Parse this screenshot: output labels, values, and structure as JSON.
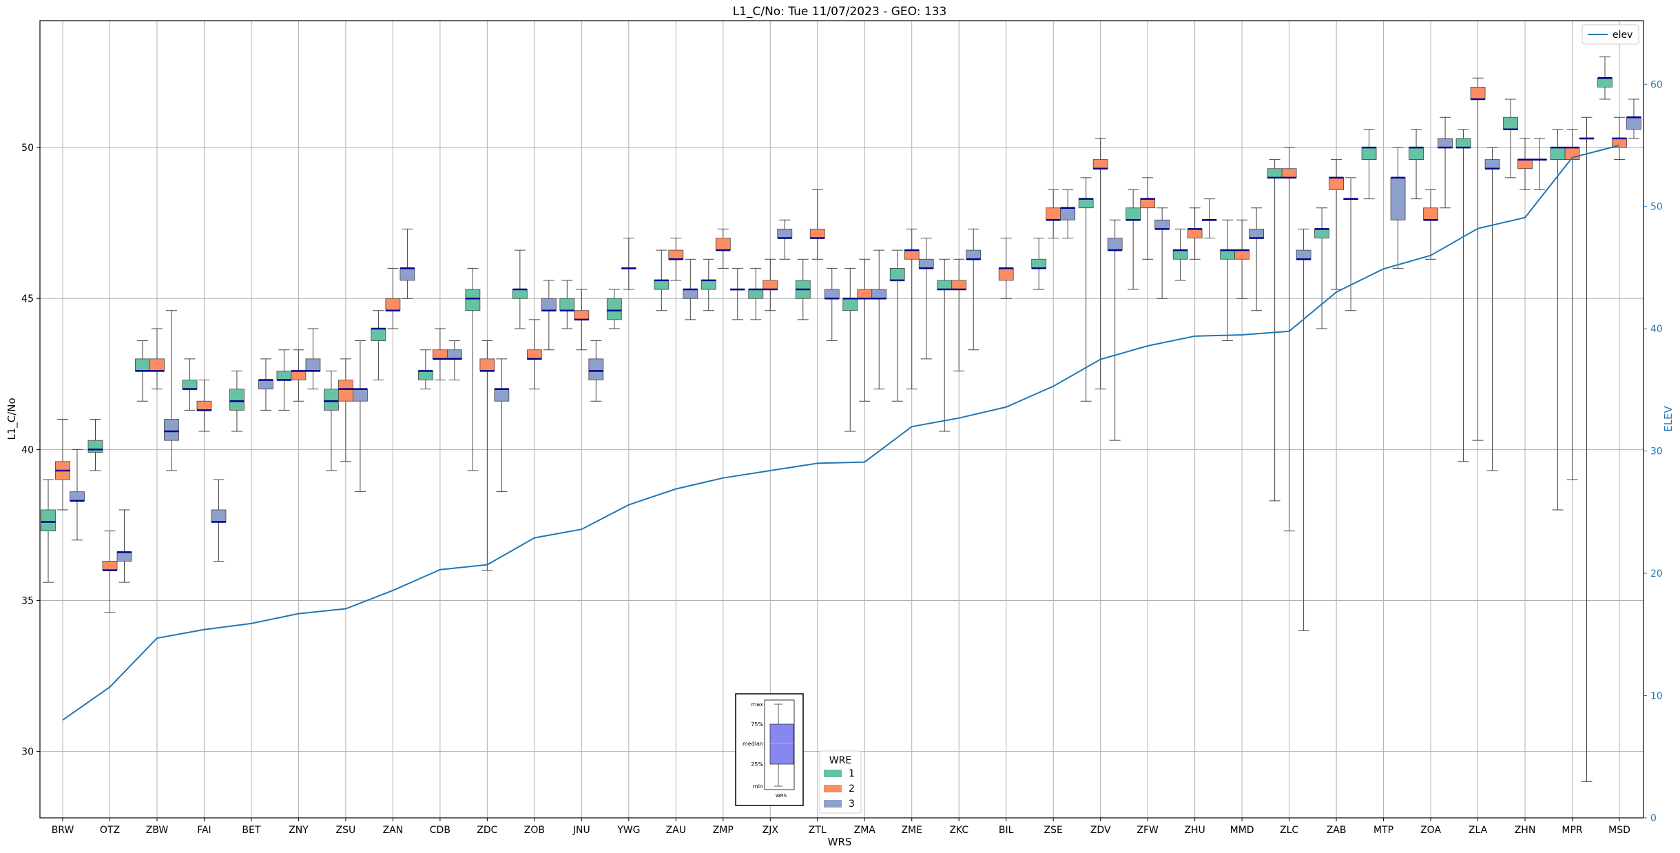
{
  "chart_data": {
    "type": "box",
    "title": "L1_C/No: Tue 11/07/2023 - GEO: 133",
    "xlabel": "WRS",
    "ylabel": "L1_C/No",
    "y2label": "ELEV",
    "ylim": [
      27.8,
      54.2
    ],
    "y2lim": [
      0,
      65.2
    ],
    "yticks": [
      30,
      35,
      40,
      45,
      50
    ],
    "y2ticks": [
      0,
      10,
      20,
      30,
      40,
      50,
      60
    ],
    "grid": true,
    "categories": [
      "BRW",
      "OTZ",
      "ZBW",
      "FAI",
      "BET",
      "ZNY",
      "ZSU",
      "ZAN",
      "CDB",
      "ZDC",
      "ZOB",
      "JNU",
      "YWG",
      "ZAU",
      "ZMP",
      "ZJX",
      "ZTL",
      "ZMA",
      "ZME",
      "ZKC",
      "BIL",
      "ZSE",
      "ZDV",
      "ZFW",
      "ZHU",
      "MMD",
      "ZLC",
      "ZAB",
      "MTP",
      "ZOA",
      "ZLA",
      "ZHN",
      "MPR",
      "MSD"
    ],
    "colors": {
      "wre1": "#66c2a5",
      "wre2": "#fc8d62",
      "wre3": "#8da0cb",
      "median": "#00008b",
      "elev": "#1f77b4",
      "whisker": "#444444"
    },
    "legend_wre": {
      "title": "WRE",
      "labels": [
        "1",
        "2",
        "3"
      ],
      "placement": "bottom-center"
    },
    "legend_elev": {
      "label": "elev",
      "placement": "top-right"
    },
    "inset_key": {
      "labels": [
        "max",
        "75%",
        "median",
        "25%",
        "min"
      ],
      "xlabel": "WRS"
    },
    "boxes": [
      [
        {
          "min": 35.6,
          "q1": 37.3,
          "med": 37.6,
          "q3": 38.0,
          "max": 39.0
        },
        {
          "min": 38.0,
          "q1": 39.0,
          "med": 39.3,
          "q3": 39.6,
          "max": 41.0
        },
        {
          "min": 37.0,
          "q1": 38.3,
          "med": 38.3,
          "q3": 38.6,
          "max": 40.0
        }
      ],
      [
        {
          "min": 39.3,
          "q1": 39.9,
          "med": 40.0,
          "q3": 40.3,
          "max": 41.0
        },
        {
          "min": 34.6,
          "q1": 36.0,
          "med": 36.0,
          "q3": 36.3,
          "max": 37.3
        },
        {
          "min": 35.6,
          "q1": 36.3,
          "med": 36.6,
          "q3": 36.6,
          "max": 38.0
        }
      ],
      [
        {
          "min": 41.6,
          "q1": 42.6,
          "med": 42.6,
          "q3": 43.0,
          "max": 43.6
        },
        {
          "min": 42.0,
          "q1": 42.6,
          "med": 42.6,
          "q3": 43.0,
          "max": 44.0
        },
        {
          "min": 39.3,
          "q1": 40.3,
          "med": 40.6,
          "q3": 41.0,
          "max": 44.6
        }
      ],
      [
        {
          "min": 41.3,
          "q1": 42.0,
          "med": 42.0,
          "q3": 42.3,
          "max": 43.0
        },
        {
          "min": 40.6,
          "q1": 41.3,
          "med": 41.3,
          "q3": 41.6,
          "max": 42.3
        },
        {
          "min": 36.3,
          "q1": 37.6,
          "med": 37.6,
          "q3": 38.0,
          "max": 39.0
        }
      ],
      [
        {
          "min": 40.6,
          "q1": 41.3,
          "med": 41.6,
          "q3": 42.0,
          "max": 42.6
        },
        null,
        {
          "min": 41.3,
          "q1": 42.0,
          "med": 42.3,
          "q3": 42.3,
          "max": 43.0
        }
      ],
      [
        {
          "min": 41.3,
          "q1": 42.3,
          "med": 42.3,
          "q3": 42.6,
          "max": 43.3
        },
        {
          "min": 41.6,
          "q1": 42.3,
          "med": 42.6,
          "q3": 42.6,
          "max": 43.3
        },
        {
          "min": 42.0,
          "q1": 42.6,
          "med": 42.6,
          "q3": 43.0,
          "max": 44.0
        }
      ],
      [
        {
          "min": 39.3,
          "q1": 41.3,
          "med": 41.6,
          "q3": 42.0,
          "max": 42.6
        },
        {
          "min": 39.6,
          "q1": 41.6,
          "med": 42.0,
          "q3": 42.3,
          "max": 43.0
        },
        {
          "min": 38.6,
          "q1": 41.6,
          "med": 42.0,
          "q3": 42.0,
          "max": 43.6
        }
      ],
      [
        {
          "min": 42.3,
          "q1": 43.6,
          "med": 44.0,
          "q3": 44.0,
          "max": 44.6
        },
        {
          "min": 44.0,
          "q1": 44.6,
          "med": 44.6,
          "q3": 45.0,
          "max": 46.0
        },
        {
          "min": 45.0,
          "q1": 45.6,
          "med": 46.0,
          "q3": 46.0,
          "max": 47.3
        }
      ],
      [
        {
          "min": 42.0,
          "q1": 42.3,
          "med": 42.6,
          "q3": 42.6,
          "max": 43.3
        },
        {
          "min": 42.3,
          "q1": 43.0,
          "med": 43.0,
          "q3": 43.3,
          "max": 44.0
        },
        {
          "min": 42.3,
          "q1": 43.0,
          "med": 43.0,
          "q3": 43.3,
          "max": 43.6
        }
      ],
      [
        {
          "min": 39.3,
          "q1": 44.6,
          "med": 45.0,
          "q3": 45.3,
          "max": 46.0
        },
        {
          "min": 36.0,
          "q1": 42.6,
          "med": 42.6,
          "q3": 43.0,
          "max": 43.6
        },
        {
          "min": 38.6,
          "q1": 41.6,
          "med": 42.0,
          "q3": 42.0,
          "max": 43.0
        }
      ],
      [
        {
          "min": 44.0,
          "q1": 45.0,
          "med": 45.3,
          "q3": 45.3,
          "max": 46.6
        },
        {
          "min": 42.0,
          "q1": 43.0,
          "med": 43.0,
          "q3": 43.3,
          "max": 44.3
        },
        {
          "min": 43.3,
          "q1": 44.6,
          "med": 44.6,
          "q3": 45.0,
          "max": 45.6
        }
      ],
      [
        {
          "min": 44.0,
          "q1": 44.6,
          "med": 44.6,
          "q3": 45.0,
          "max": 45.6
        },
        {
          "min": 43.3,
          "q1": 44.3,
          "med": 44.3,
          "q3": 44.6,
          "max": 45.3
        },
        {
          "min": 41.6,
          "q1": 42.3,
          "med": 42.6,
          "q3": 43.0,
          "max": 43.6
        }
      ],
      [
        {
          "min": 44.0,
          "q1": 44.3,
          "med": 44.6,
          "q3": 45.0,
          "max": 45.3
        },
        {
          "min": 45.3,
          "q1": 46.0,
          "med": 46.0,
          "q3": 46.0,
          "max": 47.0
        },
        null
      ],
      [
        {
          "min": 44.6,
          "q1": 45.3,
          "med": 45.6,
          "q3": 45.6,
          "max": 46.6
        },
        {
          "min": 45.6,
          "q1": 46.3,
          "med": 46.3,
          "q3": 46.6,
          "max": 47.0
        },
        {
          "min": 44.3,
          "q1": 45.0,
          "med": 45.3,
          "q3": 45.3,
          "max": 46.3
        }
      ],
      [
        {
          "min": 44.6,
          "q1": 45.3,
          "med": 45.6,
          "q3": 45.6,
          "max": 46.3
        },
        {
          "min": 46.0,
          "q1": 46.6,
          "med": 46.6,
          "q3": 47.0,
          "max": 47.3
        },
        {
          "min": 44.3,
          "q1": 45.3,
          "med": 45.3,
          "q3": 45.3,
          "max": 46.0
        }
      ],
      [
        {
          "min": 44.3,
          "q1": 45.0,
          "med": 45.3,
          "q3": 45.3,
          "max": 46.0
        },
        {
          "min": 44.6,
          "q1": 45.3,
          "med": 45.3,
          "q3": 45.6,
          "max": 46.3
        },
        {
          "min": 46.3,
          "q1": 47.0,
          "med": 47.0,
          "q3": 47.3,
          "max": 47.6
        }
      ],
      [
        {
          "min": 44.3,
          "q1": 45.0,
          "med": 45.3,
          "q3": 45.6,
          "max": 46.3
        },
        {
          "min": 46.3,
          "q1": 47.0,
          "med": 47.0,
          "q3": 47.3,
          "max": 48.6
        },
        {
          "min": 43.6,
          "q1": 45.0,
          "med": 45.0,
          "q3": 45.3,
          "max": 46.0
        }
      ],
      [
        {
          "min": 40.6,
          "q1": 44.6,
          "med": 45.0,
          "q3": 45.0,
          "max": 46.0
        },
        {
          "min": 41.6,
          "q1": 45.0,
          "med": 45.0,
          "q3": 45.3,
          "max": 46.3
        },
        {
          "min": 42.0,
          "q1": 45.0,
          "med": 45.0,
          "q3": 45.3,
          "max": 46.6
        }
      ],
      [
        {
          "min": 41.6,
          "q1": 45.6,
          "med": 45.6,
          "q3": 46.0,
          "max": 46.6
        },
        {
          "min": 42.0,
          "q1": 46.3,
          "med": 46.6,
          "q3": 46.6,
          "max": 47.3
        },
        {
          "min": 43.0,
          "q1": 46.0,
          "med": 46.0,
          "q3": 46.3,
          "max": 47.0
        }
      ],
      [
        {
          "min": 40.6,
          "q1": 45.3,
          "med": 45.3,
          "q3": 45.6,
          "max": 46.3
        },
        {
          "min": 42.6,
          "q1": 45.3,
          "med": 45.3,
          "q3": 45.6,
          "max": 46.3
        },
        {
          "min": 43.3,
          "q1": 46.3,
          "med": 46.3,
          "q3": 46.6,
          "max": 47.3
        }
      ],
      [
        null,
        {
          "min": 45.0,
          "q1": 45.6,
          "med": 46.0,
          "q3": 46.0,
          "max": 47.0
        },
        null
      ],
      [
        {
          "min": 45.3,
          "q1": 46.0,
          "med": 46.0,
          "q3": 46.3,
          "max": 47.0
        },
        {
          "min": 47.0,
          "q1": 47.6,
          "med": 47.6,
          "q3": 48.0,
          "max": 48.6
        },
        {
          "min": 47.0,
          "q1": 47.6,
          "med": 48.0,
          "q3": 48.0,
          "max": 48.6
        }
      ],
      [
        {
          "min": 41.6,
          "q1": 48.0,
          "med": 48.3,
          "q3": 48.3,
          "max": 49.0
        },
        {
          "min": 42.0,
          "q1": 49.3,
          "med": 49.3,
          "q3": 49.6,
          "max": 50.3
        },
        {
          "min": 40.3,
          "q1": 46.6,
          "med": 46.6,
          "q3": 47.0,
          "max": 47.6
        }
      ],
      [
        {
          "min": 45.3,
          "q1": 47.6,
          "med": 47.6,
          "q3": 48.0,
          "max": 48.6
        },
        {
          "min": 46.3,
          "q1": 48.0,
          "med": 48.3,
          "q3": 48.3,
          "max": 49.0
        },
        {
          "min": 45.0,
          "q1": 47.3,
          "med": 47.3,
          "q3": 47.6,
          "max": 48.0
        }
      ],
      [
        {
          "min": 45.6,
          "q1": 46.3,
          "med": 46.6,
          "q3": 46.6,
          "max": 47.3
        },
        {
          "min": 46.3,
          "q1": 47.0,
          "med": 47.3,
          "q3": 47.3,
          "max": 48.0
        },
        {
          "min": 47.0,
          "q1": 47.6,
          "med": 47.6,
          "q3": 47.6,
          "max": 48.3
        }
      ],
      [
        {
          "min": 43.6,
          "q1": 46.3,
          "med": 46.6,
          "q3": 46.6,
          "max": 47.6
        },
        {
          "min": 45.0,
          "q1": 46.3,
          "med": 46.6,
          "q3": 46.6,
          "max": 47.6
        },
        {
          "min": 44.6,
          "q1": 47.0,
          "med": 47.0,
          "q3": 47.3,
          "max": 48.0
        }
      ],
      [
        {
          "min": 38.3,
          "q1": 49.0,
          "med": 49.0,
          "q3": 49.3,
          "max": 49.6
        },
        {
          "min": 37.3,
          "q1": 49.0,
          "med": 49.0,
          "q3": 49.3,
          "max": 50.0
        },
        {
          "min": 34.0,
          "q1": 46.3,
          "med": 46.3,
          "q3": 46.6,
          "max": 47.3
        }
      ],
      [
        {
          "min": 44.0,
          "q1": 47.0,
          "med": 47.3,
          "q3": 47.3,
          "max": 48.0
        },
        {
          "min": 45.3,
          "q1": 48.6,
          "med": 49.0,
          "q3": 49.0,
          "max": 49.6
        },
        {
          "min": 44.6,
          "q1": 48.3,
          "med": 48.3,
          "q3": 48.3,
          "max": 49.0
        }
      ],
      [
        {
          "min": 48.3,
          "q1": 49.6,
          "med": 50.0,
          "q3": 50.0,
          "max": 50.6
        },
        null,
        {
          "min": 46.0,
          "q1": 47.6,
          "med": 49.0,
          "q3": 49.0,
          "max": 50.0
        }
      ],
      [
        {
          "min": 48.3,
          "q1": 49.6,
          "med": 50.0,
          "q3": 50.0,
          "max": 50.6
        },
        {
          "min": 46.3,
          "q1": 47.6,
          "med": 47.6,
          "q3": 48.0,
          "max": 48.6
        },
        {
          "min": 48.0,
          "q1": 50.0,
          "med": 50.0,
          "q3": 50.3,
          "max": 51.0
        }
      ],
      [
        {
          "min": 39.6,
          "q1": 50.0,
          "med": 50.0,
          "q3": 50.3,
          "max": 50.6
        },
        {
          "min": 40.3,
          "q1": 51.6,
          "med": 51.6,
          "q3": 52.0,
          "max": 52.3
        },
        {
          "min": 39.3,
          "q1": 49.3,
          "med": 49.3,
          "q3": 49.6,
          "max": 50.0
        }
      ],
      [
        {
          "min": 49.0,
          "q1": 50.6,
          "med": 50.6,
          "q3": 51.0,
          "max": 51.6
        },
        {
          "min": 48.6,
          "q1": 49.3,
          "med": 49.6,
          "q3": 49.6,
          "max": 50.3
        },
        {
          "min": 48.6,
          "q1": 49.6,
          "med": 49.6,
          "q3": 49.6,
          "max": 50.3
        }
      ],
      [
        {
          "min": 38.0,
          "q1": 49.6,
          "med": 50.0,
          "q3": 50.0,
          "max": 50.6
        },
        {
          "min": 39.0,
          "q1": 49.6,
          "med": 50.0,
          "q3": 50.0,
          "max": 50.6
        },
        {
          "min": 29.0,
          "q1": 50.3,
          "med": 50.3,
          "q3": 50.3,
          "max": 51.0
        }
      ],
      [
        {
          "min": 51.6,
          "q1": 52.0,
          "med": 52.3,
          "q3": 52.3,
          "max": 53.0
        },
        {
          "min": 49.6,
          "q1": 50.0,
          "med": 50.3,
          "q3": 50.3,
          "max": 51.0
        },
        {
          "min": 50.3,
          "q1": 50.6,
          "med": 51.0,
          "q3": 51.0,
          "max": 51.6
        }
      ]
    ],
    "elev": [
      8.0,
      10.7,
      14.7,
      15.4,
      15.9,
      16.7,
      17.1,
      18.6,
      20.3,
      20.7,
      22.9,
      23.6,
      25.6,
      26.9,
      27.8,
      28.4,
      29.0,
      29.1,
      32.0,
      32.7,
      33.6,
      35.3,
      37.5,
      38.6,
      39.4,
      39.5,
      39.8,
      43.0,
      44.9,
      46.0,
      48.2,
      49.1,
      54.0,
      55.0
    ]
  }
}
